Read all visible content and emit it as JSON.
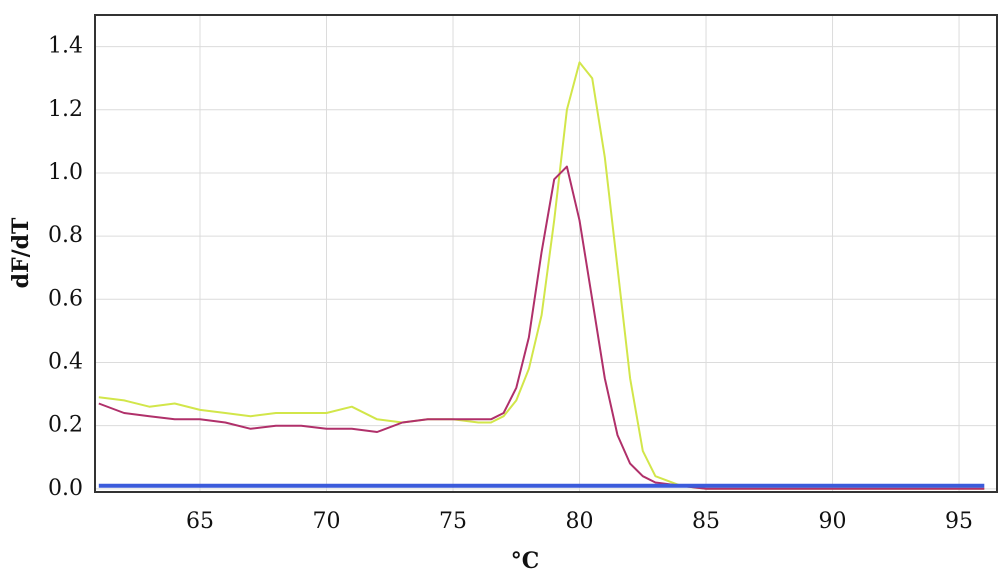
{
  "chart_data": {
    "type": "line",
    "x_label": "°C",
    "y_label": "dF/dT",
    "x": [
      61,
      62,
      63,
      64,
      65,
      66,
      67,
      68,
      69,
      70,
      71,
      72,
      73,
      74,
      75,
      76,
      76.5,
      77,
      77.5,
      78,
      78.5,
      79,
      79.5,
      80,
      80.5,
      81,
      81.5,
      82,
      82.5,
      83,
      84,
      85,
      86,
      87,
      88,
      89,
      90,
      91,
      92,
      93,
      94,
      95,
      96
    ],
    "series": [
      {
        "color": "#d2e64a",
        "values": [
          0.29,
          0.28,
          0.26,
          0.27,
          0.25,
          0.24,
          0.23,
          0.24,
          0.24,
          0.24,
          0.26,
          0.22,
          0.21,
          0.22,
          0.22,
          0.21,
          0.21,
          0.23,
          0.28,
          0.38,
          0.55,
          0.85,
          1.2,
          1.35,
          1.3,
          1.05,
          0.7,
          0.35,
          0.12,
          0.04,
          0.01,
          0,
          0,
          0,
          0,
          0,
          0,
          0,
          0,
          0,
          0,
          0,
          0
        ]
      },
      {
        "color": "#b0306a",
        "values": [
          0.27,
          0.24,
          0.23,
          0.22,
          0.22,
          0.21,
          0.19,
          0.2,
          0.2,
          0.19,
          0.19,
          0.18,
          0.21,
          0.22,
          0.22,
          0.22,
          0.22,
          0.24,
          0.32,
          0.48,
          0.75,
          0.98,
          1.02,
          0.85,
          0.6,
          0.35,
          0.17,
          0.08,
          0.04,
          0.02,
          0.01,
          0,
          0,
          0,
          0,
          0,
          0,
          0,
          0,
          0,
          0,
          0,
          0
        ]
      },
      {
        "color": "#3b5bdb",
        "values": [
          0.01,
          0.01,
          0.01,
          0.01,
          0.01,
          0.01,
          0.01,
          0.01,
          0.01,
          0.01,
          0.01,
          0.01,
          0.01,
          0.01,
          0.01,
          0.01,
          0.01,
          0.01,
          0.01,
          0.01,
          0.01,
          0.01,
          0.01,
          0.01,
          0.01,
          0.01,
          0.01,
          0.01,
          0.01,
          0.01,
          0.01,
          0.01,
          0.01,
          0.01,
          0.01,
          0.01,
          0.01,
          0.01,
          0.01,
          0.01,
          0.01,
          0.01,
          0.01
        ]
      }
    ],
    "xlim": [
      60.85,
      96.5
    ],
    "ylim": [
      -0.01,
      1.5
    ],
    "xticks": [
      65,
      70,
      75,
      80,
      85,
      90,
      95
    ],
    "yticks": [
      {
        "value": 0,
        "label": "0.0"
      },
      0.2,
      0.4,
      0.6,
      0.8,
      {
        "value": 1,
        "label": "1.0"
      },
      1.2,
      1.4
    ],
    "grid": true
  }
}
